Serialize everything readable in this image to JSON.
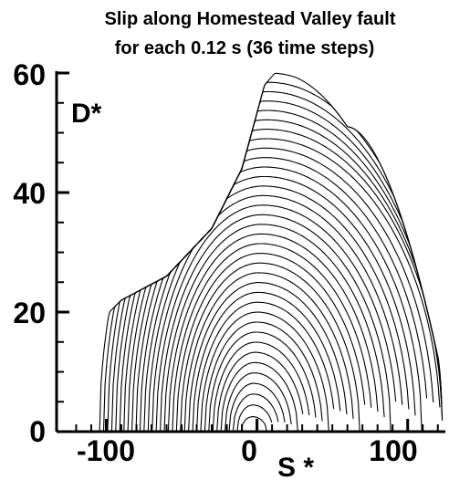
{
  "chart_data": {
    "type": "line",
    "title_lines": [
      "Slip along Homestead Valley fault",
      "for each 0.12 s (36 time steps)"
    ],
    "xlabel": "S *",
    "ylabel": "D*",
    "xlim": [
      -133,
      125
    ],
    "ylim": [
      0,
      60
    ],
    "xticks": [
      -100,
      0,
      100
    ],
    "xtick_labels": [
      "-100",
      "0",
      "100"
    ],
    "yticks": [
      0,
      20,
      40,
      60
    ],
    "ytick_labels": [
      "0",
      "20",
      "40",
      "60"
    ],
    "grid": false,
    "legend": "none",
    "curve_count": 36,
    "fault_extent": [
      -127,
      123
    ],
    "time_step_s": 0.12,
    "curve_peaks_approx": {
      "first": {
        "s": -3,
        "d": 2.5
      },
      "last": {
        "s": 8,
        "d": 60
      }
    },
    "colors": {
      "curves": "#000000",
      "axes": "#000000",
      "background": "#ffffff"
    }
  }
}
